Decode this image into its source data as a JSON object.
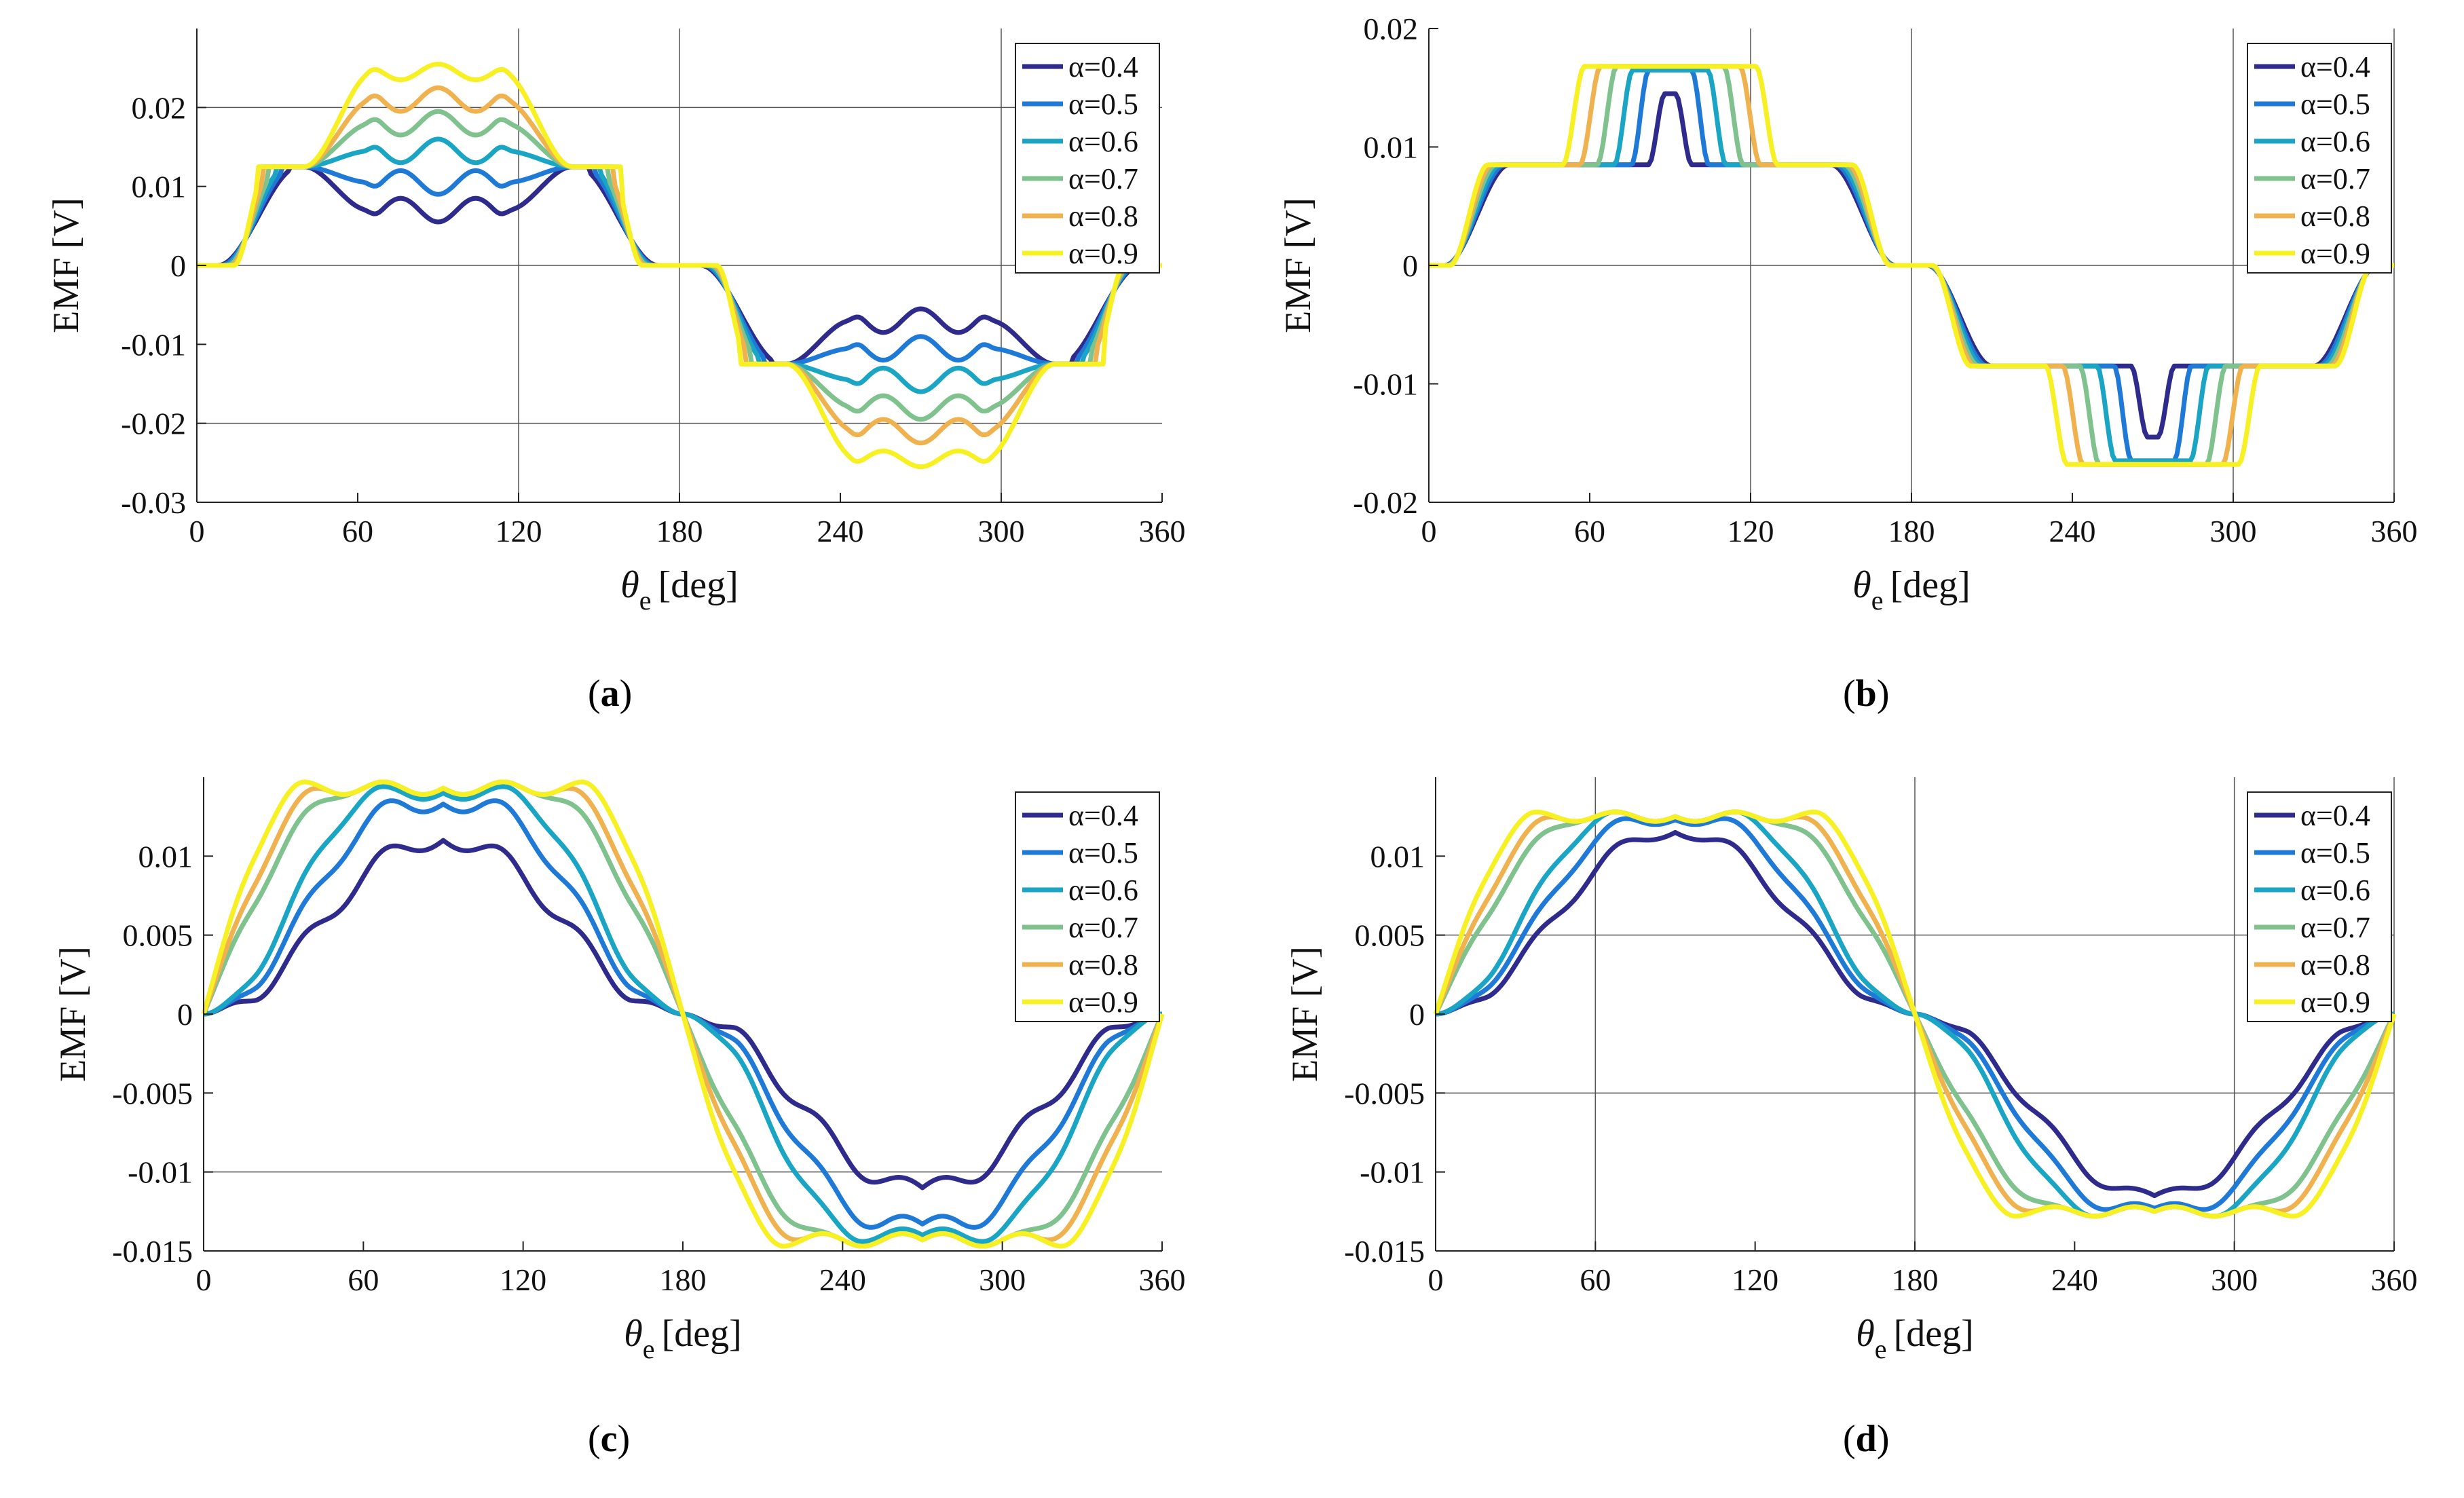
{
  "chart_data": [
    {
      "id": "a",
      "type": "line",
      "caption": "a",
      "xlabel_symbol": "θ",
      "xlabel_sub": "e",
      "xlabel_unit": "[deg]",
      "ylabel": "EMF [V]",
      "xlim": [
        0,
        360
      ],
      "ylim": [
        -0.03,
        0.03
      ],
      "xticks": [
        0,
        60,
        120,
        180,
        240,
        300,
        360
      ],
      "yticks": [
        -0.03,
        -0.02,
        -0.01,
        0,
        0.01,
        0.02
      ],
      "ytick_labels": [
        "-0.03",
        "-0.02",
        "-0.01",
        "0",
        "0.01",
        "0.02"
      ],
      "hgrid": [
        0.02,
        0,
        -0.02
      ],
      "vgrid": [
        120,
        180,
        300
      ],
      "style": "wavy",
      "legend_position": "top-right",
      "series": [
        {
          "name": "α=0.4",
          "alpha": 0.4,
          "color": "#2e2b8c",
          "plateau": 0.0125,
          "peak": 0.007,
          "ripple": 0.0015
        },
        {
          "name": "α=0.5",
          "alpha": 0.5,
          "color": "#1e7ad6",
          "plateau": 0.0125,
          "peak": 0.0105,
          "ripple": 0.0015
        },
        {
          "name": "α=0.6",
          "alpha": 0.6,
          "color": "#1aa5c4",
          "plateau": 0.0125,
          "peak": 0.0145,
          "ripple": 0.0015
        },
        {
          "name": "α=0.7",
          "alpha": 0.7,
          "color": "#7fc28e",
          "plateau": 0.0125,
          "peak": 0.018,
          "ripple": 0.0015
        },
        {
          "name": "α=0.8",
          "alpha": 0.8,
          "color": "#f0b24e",
          "plateau": 0.0125,
          "peak": 0.021,
          "ripple": 0.0015
        },
        {
          "name": "α=0.9",
          "alpha": 0.9,
          "color": "#f7f023",
          "plateau": 0.0125,
          "peak": 0.0245,
          "ripple": 0.001
        }
      ]
    },
    {
      "id": "b",
      "type": "line",
      "caption": "b",
      "xlabel_symbol": "θ",
      "xlabel_sub": "e",
      "xlabel_unit": "[deg]",
      "ylabel": "EMF [V]",
      "xlim": [
        0,
        360
      ],
      "ylim": [
        -0.02,
        0.02
      ],
      "xticks": [
        0,
        60,
        120,
        180,
        240,
        300,
        360
      ],
      "yticks": [
        -0.02,
        -0.01,
        0,
        0.01,
        0.02
      ],
      "ytick_labels": [
        "-0.02",
        "-0.01",
        "0",
        "0.01",
        "0.02"
      ],
      "hgrid": [
        0
      ],
      "vgrid": [
        120,
        180,
        300,
        360
      ],
      "style": "steps",
      "legend_position": "top-right",
      "series": [
        {
          "name": "α=0.4",
          "alpha": 0.4,
          "color": "#2e2b8c",
          "low": 0.0085,
          "high": 0.0145
        },
        {
          "name": "α=0.5",
          "alpha": 0.5,
          "color": "#1e7ad6",
          "low": 0.0085,
          "high": 0.0165
        },
        {
          "name": "α=0.6",
          "alpha": 0.6,
          "color": "#1aa5c4",
          "low": 0.0085,
          "high": 0.0165
        },
        {
          "name": "α=0.7",
          "alpha": 0.7,
          "color": "#7fc28e",
          "low": 0.0085,
          "high": 0.0168
        },
        {
          "name": "α=0.8",
          "alpha": 0.8,
          "color": "#f0b24e",
          "low": 0.0085,
          "high": 0.0168
        },
        {
          "name": "α=0.9",
          "alpha": 0.9,
          "color": "#f7f023",
          "low": 0.0085,
          "high": 0.0168
        }
      ]
    },
    {
      "id": "c",
      "type": "line",
      "caption": "c",
      "xlabel_symbol": "θ",
      "xlabel_sub": "e",
      "xlabel_unit": "[deg]",
      "ylabel": "EMF [V]",
      "xlim": [
        0,
        360
      ],
      "ylim": [
        -0.015,
        0.015
      ],
      "xticks": [
        0,
        60,
        120,
        180,
        240,
        300,
        360
      ],
      "yticks": [
        -0.015,
        -0.01,
        -0.005,
        0,
        0.005,
        0.01
      ],
      "ytick_labels": [
        "-0.015",
        "-0.01",
        "-0.005",
        "0",
        "0.005",
        "0.01"
      ],
      "hgrid": [
        -0.01
      ],
      "vgrid": [],
      "style": "trap",
      "legend_position": "top-right",
      "series": [
        {
          "name": "α=0.4",
          "alpha": 0.4,
          "color": "#2e2b8c",
          "peak": 0.011,
          "ripple": 0.0006
        },
        {
          "name": "α=0.5",
          "alpha": 0.5,
          "color": "#1e7ad6",
          "peak": 0.0133,
          "ripple": 0.0005
        },
        {
          "name": "α=0.6",
          "alpha": 0.6,
          "color": "#1aa5c4",
          "peak": 0.014,
          "ripple": 0.0004
        },
        {
          "name": "α=0.7",
          "alpha": 0.7,
          "color": "#7fc28e",
          "peak": 0.0143,
          "ripple": 0.0004
        },
        {
          "name": "α=0.8",
          "alpha": 0.8,
          "color": "#f0b24e",
          "peak": 0.0143,
          "ripple": 0.0004
        },
        {
          "name": "α=0.9",
          "alpha": 0.9,
          "color": "#f7f023",
          "peak": 0.0143,
          "ripple": 0.0004
        }
      ]
    },
    {
      "id": "d",
      "type": "line",
      "caption": "d",
      "xlabel_symbol": "θ",
      "xlabel_sub": "e",
      "xlabel_unit": "[deg]",
      "ylabel": "EMF [V]",
      "xlim": [
        0,
        360
      ],
      "ylim": [
        -0.015,
        0.015
      ],
      "xticks": [
        0,
        60,
        120,
        180,
        240,
        300,
        360
      ],
      "yticks": [
        -0.015,
        -0.01,
        -0.005,
        0,
        0.005,
        0.01
      ],
      "ytick_labels": [
        "-0.015",
        "-0.01",
        "-0.005",
        "0",
        "0.005",
        "0.01"
      ],
      "hgrid": [
        0.005,
        -0.005
      ],
      "vgrid": [
        60,
        180,
        300,
        360
      ],
      "style": "trap",
      "legend_position": "top-right",
      "series": [
        {
          "name": "α=0.4",
          "alpha": 0.4,
          "color": "#2e2b8c",
          "peak": 0.0115,
          "ripple": 0.0004
        },
        {
          "name": "α=0.5",
          "alpha": 0.5,
          "color": "#1e7ad6",
          "peak": 0.0123,
          "ripple": 0.0003
        },
        {
          "name": "α=0.6",
          "alpha": 0.6,
          "color": "#1aa5c4",
          "peak": 0.0125,
          "ripple": 0.0003
        },
        {
          "name": "α=0.7",
          "alpha": 0.7,
          "color": "#7fc28e",
          "peak": 0.0125,
          "ripple": 0.0003
        },
        {
          "name": "α=0.8",
          "alpha": 0.8,
          "color": "#f0b24e",
          "peak": 0.0125,
          "ripple": 0.0003
        },
        {
          "name": "α=0.9",
          "alpha": 0.9,
          "color": "#f7f023",
          "peak": 0.0125,
          "ripple": 0.0003
        }
      ]
    }
  ]
}
